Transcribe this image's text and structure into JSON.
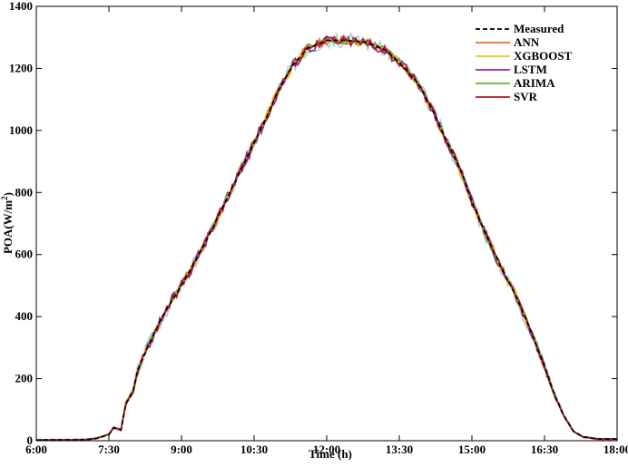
{
  "chart_data": {
    "type": "line",
    "title": "",
    "xlabel": "Time (h)",
    "ylabel": "POA(W/m²)",
    "xlim": [
      6.0,
      18.0
    ],
    "ylim": [
      0,
      1400
    ],
    "x_ticks": [
      6.0,
      7.5,
      9.0,
      10.5,
      12.0,
      13.5,
      15.0,
      16.5,
      18.0
    ],
    "x_tick_labels": [
      "6:00",
      "7:30",
      "9:00",
      "10:30",
      "12:00",
      "13:30",
      "15:00",
      "16:30",
      "18:00"
    ],
    "y_ticks": [
      0,
      200,
      400,
      600,
      800,
      1000,
      1200,
      1400
    ],
    "y_tick_labels": [
      "0",
      "200",
      "400",
      "600",
      "800",
      "1000",
      "1200",
      "1400"
    ],
    "grid": false,
    "legend_position": "top-right",
    "series": [
      {
        "name": "Measured",
        "color": "#000000",
        "dashed": true,
        "noise": 0
      },
      {
        "name": "ANN",
        "color": "#f26b2a",
        "dashed": false,
        "noise": 14,
        "seed": 11
      },
      {
        "name": "XGBOOST",
        "color": "#f2c318",
        "dashed": false,
        "noise": 16,
        "seed": 23
      },
      {
        "name": "LSTM",
        "color": "#8e2b97",
        "dashed": false,
        "noise": 18,
        "seed": 37
      },
      {
        "name": "ARIMA",
        "color": "#66b42f",
        "dashed": false,
        "noise": 12,
        "seed": 41
      },
      {
        "name": "SVR",
        "color": "#b8142d",
        "dashed": false,
        "noise": 13,
        "seed": 53
      }
    ],
    "extra_trace": {
      "color": "#9dd8e6",
      "noise": 24,
      "seed": 67
    },
    "measured_profile": [
      [
        6.0,
        2
      ],
      [
        7.0,
        3
      ],
      [
        7.25,
        8
      ],
      [
        7.5,
        20
      ],
      [
        7.6,
        42
      ],
      [
        7.75,
        35
      ],
      [
        7.85,
        120
      ],
      [
        8.0,
        160
      ],
      [
        8.1,
        230
      ],
      [
        8.3,
        300
      ],
      [
        8.6,
        400
      ],
      [
        9.0,
        500
      ],
      [
        9.5,
        640
      ],
      [
        10.0,
        800
      ],
      [
        10.5,
        960
      ],
      [
        10.75,
        1040
      ],
      [
        11.0,
        1130
      ],
      [
        11.3,
        1210
      ],
      [
        11.6,
        1265
      ],
      [
        12.0,
        1290
      ],
      [
        12.4,
        1290
      ],
      [
        12.8,
        1285
      ],
      [
        13.2,
        1260
      ],
      [
        13.5,
        1220
      ],
      [
        13.9,
        1150
      ],
      [
        14.2,
        1060
      ],
      [
        14.5,
        960
      ],
      [
        14.8,
        860
      ],
      [
        15.0,
        770
      ],
      [
        15.3,
        660
      ],
      [
        15.6,
        560
      ],
      [
        15.9,
        470
      ],
      [
        16.2,
        360
      ],
      [
        16.5,
        240
      ],
      [
        16.7,
        150
      ],
      [
        16.9,
        80
      ],
      [
        17.1,
        30
      ],
      [
        17.3,
        12
      ],
      [
        17.6,
        6
      ],
      [
        18.0,
        5
      ]
    ]
  }
}
